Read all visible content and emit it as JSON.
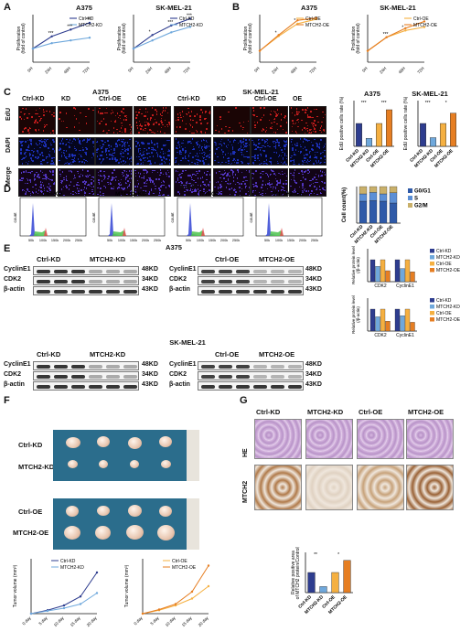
{
  "panels": {
    "A": "A",
    "B": "B",
    "C": "C",
    "D": "D",
    "E": "E",
    "F": "F",
    "G": "G"
  },
  "colors": {
    "kd_ctrl": "#2e3d8f",
    "kd": "#6fa8dc",
    "oe_ctrl": "#f5b041",
    "oe": "#e67e22",
    "edu": "#d62020",
    "dapi": "#1f35c8"
  },
  "A": {
    "titles": [
      "A375",
      "SK-MEL-21"
    ],
    "ylabel": "Proliferation\n(fold of control)",
    "xticks": [
      "0H",
      "24H",
      "48H",
      "72H"
    ],
    "legend": [
      "Ctrl-KD",
      "MTCH2-KD"
    ],
    "sig": [
      "***",
      "***",
      "***",
      "*",
      "***",
      "***"
    ]
  },
  "B": {
    "titles": [
      "A375",
      "SK-MEL-21"
    ],
    "ylabel": "Proliferation\n(fold of control)",
    "xticks": [
      "0H",
      "24H",
      "48H",
      "72H"
    ],
    "legend": [
      "Ctrl-OE",
      "MTCH2-OE"
    ],
    "sig": [
      "*",
      "*",
      "***",
      "*"
    ]
  },
  "C": {
    "groups": [
      "A375",
      "SK-MEL-21"
    ],
    "cols": [
      "Ctrl-KD",
      "KD",
      "Ctrl-OE",
      "OE"
    ],
    "rows": [
      "EdU",
      "DAPI",
      "Merge"
    ],
    "bar_titles": [
      "A375",
      "SK-MEL-21"
    ],
    "bar_ylabel": "EdU positive cells rate (%)",
    "bar_cats": [
      "Ctrl-KD",
      "MTCH2-KD",
      "Ctrl-OE",
      "MTCH2-OE"
    ],
    "sig_a375": [
      "***",
      "***"
    ],
    "sig_sk": [
      "***",
      "*"
    ]
  },
  "D": {
    "title": "A375",
    "hist_titles": [
      "Ctrl-KD",
      "MTCH2-KD",
      "Ctrl-OE",
      "MTCH2-OE"
    ],
    "ylabel": "count",
    "xticks": [
      "50k",
      "100k",
      "150k",
      "200k",
      "250k"
    ],
    "stack_ylabel": "Cell count(%)",
    "stack_legend": [
      "G0/G1",
      "S",
      "G2/M"
    ],
    "stack_cats": [
      "Ctrl-KD",
      "MTCH2-KD",
      "Ctrl-OE",
      "MTCH2-OE"
    ]
  },
  "E": {
    "title_top": "A375",
    "title_bottom": "SK-MEL-21",
    "headers_left": [
      "Ctrl-KD",
      "MTCH2-KD"
    ],
    "headers_right": [
      "Ctrl-OE",
      "MTCH2-OE"
    ],
    "proteins": [
      "CyclinE1",
      "CDK2",
      "β-actin"
    ],
    "sizes": [
      "48KD",
      "34KD",
      "43KD"
    ],
    "bar_ylabel": "Relative protein level\n(/β-actin)",
    "bar_cats": [
      "CDK2",
      "CyclinE1"
    ],
    "legend": [
      "Ctrl-KD",
      "MTCH2-KD",
      "Ctrl-OE",
      "MTCH2-OE"
    ]
  },
  "F": {
    "labels": [
      "Ctrl-KD",
      "MTCH2-KD",
      "Ctrl-OE",
      "MTCH2-OE"
    ],
    "ylabel": "Tumor volume (mm³)",
    "xticks": [
      "0 day",
      "5 day",
      "10 day",
      "15 day",
      "20 day"
    ],
    "legend_kd": [
      "Ctrl-KD",
      "MTCH2-KD"
    ],
    "legend_oe": [
      "Ctrl-OE",
      "MTCH2-OE"
    ]
  },
  "G": {
    "cols": [
      "Ctrl-KD",
      "MTCH2-KD",
      "Ctrl-OE",
      "MTCH2-OE"
    ],
    "rows": [
      "HE",
      "MTCH2"
    ],
    "bar_ylabel": "Relative positive area\nof MTCH2 protein/Control)",
    "bar_cats": [
      "Ctrl-KD",
      "MTCH2-KD",
      "Ctrl-OE",
      "MTCH2-OE"
    ],
    "sig": [
      "**",
      "*"
    ]
  },
  "chart_data": [
    {
      "type": "line",
      "title": "A375",
      "x": [
        "0H",
        "24H",
        "48H",
        "72H"
      ],
      "series": [
        {
          "name": "Ctrl-KD",
          "values": [
            1,
            1.9,
            2.4,
            2.9
          ]
        },
        {
          "name": "MTCH2-KD",
          "values": [
            1,
            1.4,
            1.6,
            1.8
          ]
        }
      ],
      "ylabel": "Proliferation (fold of control)"
    },
    {
      "type": "line",
      "title": "SK-MEL-21",
      "x": [
        "0H",
        "24H",
        "48H",
        "72H"
      ],
      "series": [
        {
          "name": "Ctrl-KD",
          "values": [
            1,
            2.0,
            2.7,
            3.2
          ]
        },
        {
          "name": "MTCH2-KD",
          "values": [
            1,
            1.6,
            2.2,
            2.6
          ]
        }
      ],
      "ylabel": "Proliferation (fold of control)"
    },
    {
      "type": "line",
      "title": "A375",
      "x": [
        "0H",
        "24H",
        "48H",
        "72H"
      ],
      "series": [
        {
          "name": "Ctrl-OE",
          "values": [
            1,
            2.3,
            3.4,
            3.8
          ]
        },
        {
          "name": "MTCH2-OE",
          "values": [
            1,
            2.4,
            3.7,
            3.9
          ]
        }
      ],
      "ylabel": "Proliferation (fold of control)"
    },
    {
      "type": "line",
      "title": "SK-MEL-21",
      "x": [
        "0H",
        "24H",
        "48H",
        "72H"
      ],
      "series": [
        {
          "name": "Ctrl-OE",
          "values": [
            1,
            2.2,
            2.8,
            3.1
          ]
        },
        {
          "name": "MTCH2-OE",
          "values": [
            1,
            2.2,
            3.0,
            3.6
          ]
        }
      ],
      "ylabel": "Proliferation (fold of control)"
    },
    {
      "type": "bar",
      "title": "A375",
      "categories": [
        "Ctrl-KD",
        "MTCH2-KD",
        "Ctrl-OE",
        "MTCH2-OE"
      ],
      "values": [
        1.0,
        0.35,
        1.0,
        1.6
      ],
      "ylabel": "EdU positive cells rate (%)",
      "ylim": [
        0,
        2
      ]
    },
    {
      "type": "bar",
      "title": "SK-MEL-21",
      "categories": [
        "Ctrl-KD",
        "MTCH2-KD",
        "Ctrl-OE",
        "MTCH2-OE"
      ],
      "values": [
        1.0,
        0.38,
        1.0,
        1.45
      ],
      "ylabel": "EdU positive cells rate (%)",
      "ylim": [
        0,
        2
      ]
    },
    {
      "type": "bar",
      "categories": [
        "Ctrl-KD",
        "MTCH2-KD",
        "Ctrl-OE",
        "MTCH2-OE"
      ],
      "series": [
        {
          "name": "G0/G1",
          "values": [
            60,
            62,
            60,
            55
          ]
        },
        {
          "name": "S",
          "values": [
            20,
            22,
            20,
            28
          ]
        },
        {
          "name": "G2/M",
          "values": [
            20,
            16,
            20,
            17
          ]
        }
      ],
      "ylabel": "Cell count(%)",
      "ylim": [
        0,
        100
      ]
    },
    {
      "type": "bar",
      "categories": [
        "CDK2",
        "CyclinE1"
      ],
      "series": [
        {
          "name": "Ctrl-KD",
          "values": [
            1.0,
            1.0
          ]
        },
        {
          "name": "MTCH2-KD",
          "values": [
            0.7,
            0.6
          ]
        },
        {
          "name": "Ctrl-OE",
          "values": [
            1.0,
            1.0
          ]
        },
        {
          "name": "MTCH2-OE",
          "values": [
            0.5,
            0.45
          ]
        }
      ],
      "ylabel": "Relative protein level (/β-actin)",
      "ylim": [
        0,
        1.5
      ]
    },
    {
      "type": "bar",
      "categories": [
        "CDK2",
        "CyclinE1"
      ],
      "series": [
        {
          "name": "Ctrl-KD",
          "values": [
            1.0,
            1.0
          ]
        },
        {
          "name": "MTCH2-KD",
          "values": [
            0.65,
            0.7
          ]
        },
        {
          "name": "Ctrl-OE",
          "values": [
            1.0,
            1.0
          ]
        },
        {
          "name": "MTCH2-OE",
          "values": [
            0.45,
            0.4
          ]
        }
      ],
      "ylabel": "Relative protein level (/β-actin)",
      "ylim": [
        0,
        1.5
      ]
    },
    {
      "type": "line",
      "x": [
        "0 day",
        "5 day",
        "10 day",
        "15 day",
        "20 day"
      ],
      "series": [
        {
          "name": "Ctrl-KD",
          "values": [
            0,
            5,
            12,
            25,
            60
          ]
        },
        {
          "name": "MTCH2-KD",
          "values": [
            0,
            4,
            8,
            14,
            30
          ]
        }
      ],
      "ylabel": "Tumor volume (mm³)",
      "ylim": [
        0,
        80
      ]
    },
    {
      "type": "line",
      "x": [
        "0 day",
        "5 day",
        "10 day",
        "15 day",
        "20 day"
      ],
      "series": [
        {
          "name": "Ctrl-OE",
          "values": [
            0,
            5,
            12,
            22,
            40
          ]
        },
        {
          "name": "MTCH2-OE",
          "values": [
            0,
            6,
            14,
            32,
            70
          ]
        }
      ],
      "ylabel": "Tumor volume (mm³)",
      "ylim": [
        0,
        80
      ]
    },
    {
      "type": "bar",
      "categories": [
        "Ctrl-KD",
        "MTCH2-KD",
        "Ctrl-OE",
        "MTCH2-OE"
      ],
      "values": [
        1.0,
        0.3,
        1.0,
        1.6
      ],
      "ylabel": "Relative positive area of MTCH2 protein/Control)",
      "ylim": [
        0,
        2
      ]
    }
  ]
}
